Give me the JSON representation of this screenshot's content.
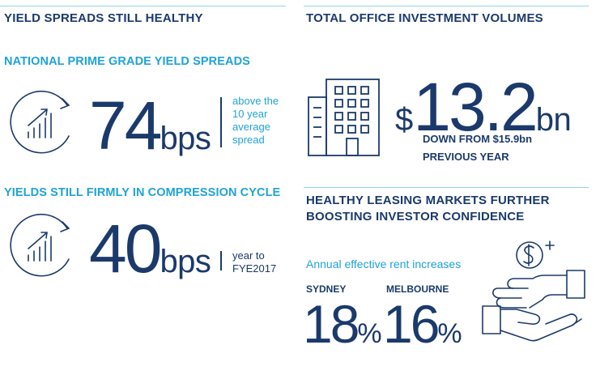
{
  "left": {
    "section_title": "YIELD SPREADS STILL HEALTHY",
    "block1": {
      "subtitle": "NATIONAL PRIME GRADE YIELD SPREADS",
      "value": "74",
      "unit": "bps",
      "note_lines": [
        "above the",
        "10 year",
        "average",
        "spread"
      ],
      "icon": "growth-chart-circular-arrow-icon"
    },
    "block2": {
      "subtitle": "YIELDS STILL FIRMLY IN COMPRESSION CYCLE",
      "value": "40",
      "unit": "bps",
      "note_lines": [
        "year to",
        "FYE2017"
      ],
      "icon": "growth-chart-circular-arrow-icon"
    }
  },
  "right": {
    "section_title": "TOTAL OFFICE INVESTMENT VOLUMES",
    "volume": {
      "currency": "$",
      "value": "13.2",
      "unit": "bn",
      "caption_lines": [
        "DOWN FROM $15.9bn",
        "PREVIOUS YEAR"
      ],
      "icon": "office-building-icon"
    },
    "leasing": {
      "title_lines": [
        "HEALTHY LEASING MARKETS FURTHER",
        "BOOSTING INVESTOR CONFIDENCE"
      ],
      "subtitle": "Annual effective rent increases",
      "cities": [
        {
          "name": "SYDNEY",
          "value": "18",
          "sym": "%"
        },
        {
          "name": "MELBOURNE",
          "value": "16",
          "sym": "%"
        }
      ],
      "icon": "hands-exchanging-dollar-icon"
    }
  },
  "colors": {
    "navy": "#1b3a6b",
    "cyan": "#1fa3d6",
    "rule": "#8fd3ea"
  }
}
